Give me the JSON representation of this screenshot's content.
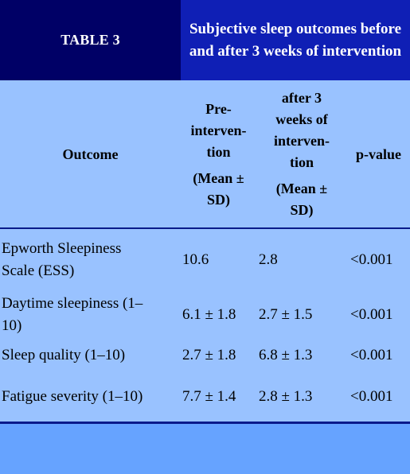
{
  "table": {
    "title": "TABLE 3",
    "caption": "Subjective sleep outcomes before and after 3 weeks of intervention",
    "columns": {
      "outcome": "Outcome",
      "pre": [
        "Pre-",
        "interven-",
        "tion",
        "(Mean ±",
        "SD)"
      ],
      "post": [
        "after 3",
        "weeks of",
        "interven-",
        "tion",
        "(Mean ±",
        "SD)"
      ],
      "p": "p-value"
    },
    "rows": [
      {
        "outcome": [
          "Epworth Sleepiness",
          "Scale (ESS)"
        ],
        "pre": "10.6",
        "post": "2.8",
        "p": "<0.001"
      },
      {
        "outcome": [
          "Daytime sleepiness (1–",
          "10)"
        ],
        "pre": "6.1 ± 1.8",
        "post": "2.7 ± 1.5",
        "p": "<0.001"
      },
      {
        "outcome": [
          "Sleep quality (1–10)"
        ],
        "pre": "2.7 ± 1.8",
        "post": "6.8 ± 1.3",
        "p": "<0.001"
      },
      {
        "outcome": [
          "Fatigue severity (1–10)"
        ],
        "pre": "7.7 ± 1.4",
        "post": "2.8 ± 1.3",
        "p": "<0.001"
      }
    ]
  },
  "colors": {
    "title_bg": "#000066",
    "caption_bg": "#0f1fb5",
    "table_bg": "#99c2ff",
    "page_bg": "#66a3ff",
    "rule": "#0a1a8a"
  }
}
